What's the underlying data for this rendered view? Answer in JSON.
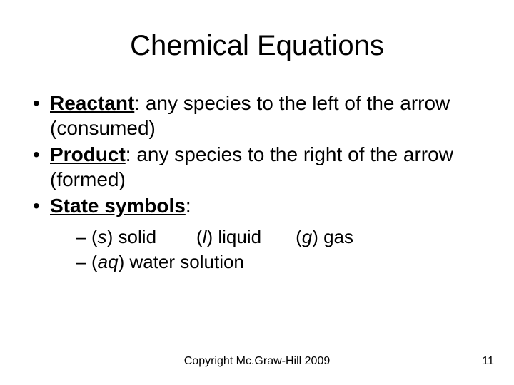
{
  "title": "Chemical Equations",
  "bullets": {
    "b0": {
      "term": "Reactant",
      "rest": ": any species to the left of the arrow (consumed)"
    },
    "b1": {
      "term": "Product",
      "rest": ": any species to the right of the arrow (formed)"
    },
    "b2": {
      "term": "State symbols",
      "rest": ":"
    }
  },
  "sub": {
    "s0": {
      "p0a": "(",
      "p0b": "s",
      "p0c": ") solid",
      "p1a": "(",
      "p1b": "l",
      "p1c": ") liquid",
      "p2a": "(",
      "p2b": "g",
      "p2c": ") gas"
    },
    "s1": {
      "p0a": "(",
      "p0b": "aq",
      "p0c": ") water solution"
    }
  },
  "footer": "Copyright Mc.Graw-Hill 2009",
  "page": "11",
  "style": {
    "background": "#ffffff",
    "text_color": "#000000",
    "title_fontsize": 40,
    "body_fontsize": 28,
    "sub_fontsize": 26,
    "footer_fontsize": 16,
    "font_family": "Arial"
  }
}
